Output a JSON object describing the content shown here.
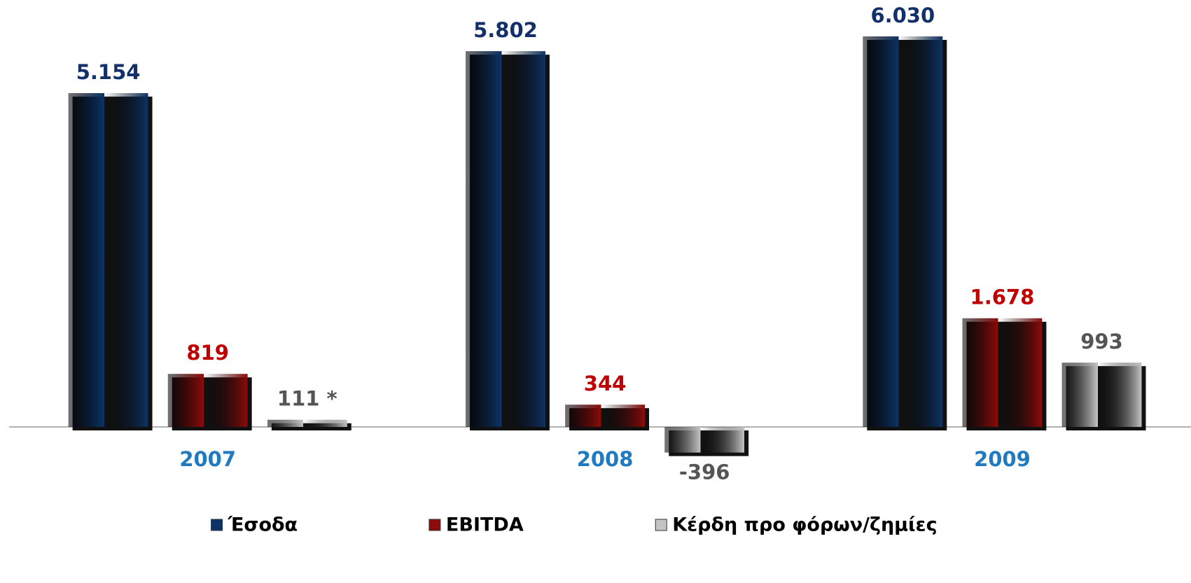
{
  "chart_data": {
    "type": "bar",
    "categories": [
      "2007",
      "2008",
      "2009"
    ],
    "series": [
      {
        "name": "Έσοδα",
        "color": "#0d3366",
        "values": [
          5154,
          5802,
          6030
        ],
        "value_labels": [
          "5.154",
          "5.802",
          "6.030"
        ]
      },
      {
        "name": "EBITDA",
        "color": "#8e0b0b",
        "values": [
          819,
          344,
          1678
        ],
        "value_labels": [
          "819",
          "344",
          "1.678"
        ]
      },
      {
        "name": "Κέρδη προ φόρων/ζημίες",
        "color": "#c4c4c4",
        "values": [
          111,
          -396,
          993
        ],
        "value_labels": [
          "111 *",
          "-396",
          "993"
        ]
      }
    ]
  }
}
